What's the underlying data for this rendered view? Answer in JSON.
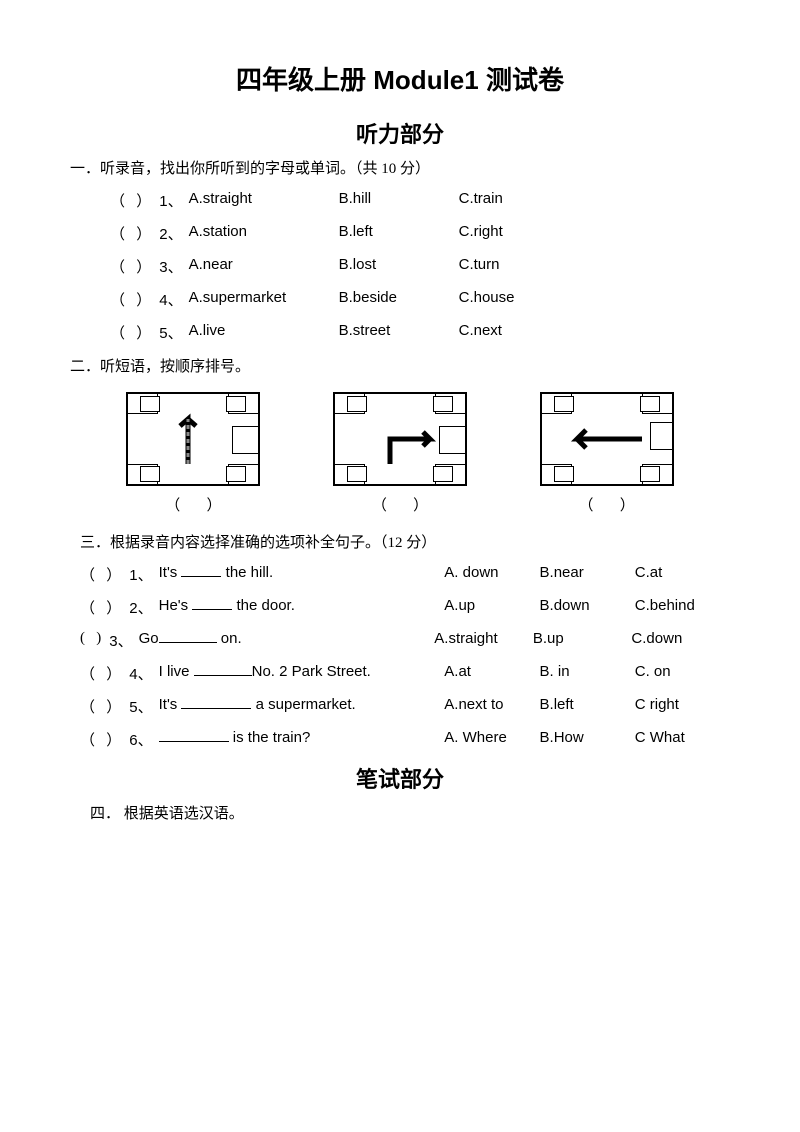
{
  "title": "四年级上册 Module1 测试卷",
  "heading_listening": "听力部分",
  "heading_written": "笔试部分",
  "section1": {
    "label": "一．听录音，找出你所听到的字母或单词。（共 10 分）",
    "items": [
      {
        "n": "1、",
        "a": "A.straight",
        "b": "B.hill",
        "c": "C.train"
      },
      {
        "n": "2、",
        "a": "A.station",
        "b": "B.left",
        "c": "C.right"
      },
      {
        "n": "3、",
        "a": "A.near",
        "b": "B.lost",
        "c": "C.turn"
      },
      {
        "n": "4、",
        "a": "A.supermarket",
        "b": "B.beside",
        "c": "C.house"
      },
      {
        "n": "5、",
        "a": "A.live",
        "b": "B.street",
        "c": "C.next"
      }
    ]
  },
  "section2": {
    "label": "二．听短语，按顺序排号。",
    "paren": "（       ）"
  },
  "section3": {
    "label": "三．根据录音内容选择准确的选项补全句子。（12 分）",
    "items": [
      {
        "n": "1、",
        "stem_pre": "It's ",
        "blank_w": 40,
        "stem_post": " the   hill.",
        "a": "A. down",
        "b": "B.near",
        "c": "C.at"
      },
      {
        "n": "2、",
        "stem_pre": "He's ",
        "blank_w": 40,
        "stem_post": " the door.",
        "a": "A.up",
        "b": "B.down",
        "c": "C.behind"
      },
      {
        "n": "3、",
        "stem_pre": "Go",
        "blank_w": 58,
        "stem_post": " on.",
        "a": "A.straight",
        "b": "B.up",
        "c": "C.down"
      },
      {
        "n": "4、",
        "stem_pre": "I live   ",
        "blank_w": 58,
        "stem_post": "No. 2 Park Street.",
        "a": "A.at",
        "b": "B. in",
        "c": "C. on"
      },
      {
        "n": "5、",
        "stem_pre": "It's ",
        "blank_w": 70,
        "stem_post": " a supermarket.",
        "a": "A.next to",
        "b": "B.left",
        "c": "C right"
      },
      {
        "n": "6、",
        "stem_pre": " ",
        "blank_w": 70,
        "stem_post": " is the train?",
        "a": "A. Where",
        "b": "B.How",
        "c": "C What"
      }
    ]
  },
  "section4": {
    "label": "四． 根据英语选汉语。"
  },
  "paren_text": "（   ）",
  "paren_text_alt": "(   )"
}
